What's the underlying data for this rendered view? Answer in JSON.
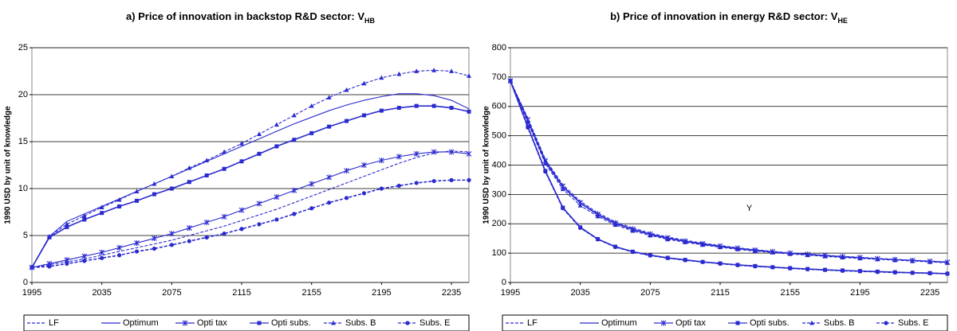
{
  "chart_data": [
    {
      "type": "line",
      "title": "a) Price of innovation in backstop R&D sector: V",
      "title_subscript": "HB",
      "y_label": "1990 USD by unit of knowledge",
      "x": [
        1995,
        2005,
        2015,
        2025,
        2035,
        2045,
        2055,
        2065,
        2075,
        2085,
        2095,
        2105,
        2115,
        2125,
        2135,
        2145,
        2155,
        2165,
        2175,
        2185,
        2195,
        2205,
        2215,
        2225,
        2235,
        2245
      ],
      "xlim": [
        1995,
        2245
      ],
      "xticks": [
        1995,
        2035,
        2075,
        2115,
        2155,
        2195,
        2235
      ],
      "ylim": [
        0,
        25
      ],
      "yticks": [
        0,
        5,
        10,
        15,
        20,
        25
      ],
      "grid": true,
      "series": [
        {
          "name": "LF",
          "color": "#2a2ad0",
          "dash": true,
          "marker": "none",
          "values": [
            1.6,
            1.9,
            2.2,
            2.5,
            2.9,
            3.3,
            3.7,
            4.1,
            4.5,
            5.0,
            5.5,
            6.0,
            6.6,
            7.2,
            7.8,
            8.5,
            9.2,
            9.9,
            10.6,
            11.3,
            12.0,
            12.7,
            13.3,
            13.8,
            14.0,
            13.9
          ]
        },
        {
          "name": "Optimum",
          "color": "#2a2ad0",
          "dash": false,
          "marker": "none",
          "values": [
            1.6,
            4.9,
            6.5,
            7.3,
            8.1,
            8.9,
            9.7,
            10.5,
            11.3,
            12.1,
            12.9,
            13.7,
            14.5,
            15.3,
            16.1,
            16.9,
            17.6,
            18.3,
            18.9,
            19.4,
            19.8,
            20.1,
            20.1,
            19.9,
            19.4,
            18.5
          ]
        },
        {
          "name": "Opti tax",
          "color": "#2a2ad0",
          "dash": false,
          "marker": "star",
          "values": [
            1.6,
            2.0,
            2.4,
            2.8,
            3.2,
            3.7,
            4.2,
            4.7,
            5.2,
            5.8,
            6.4,
            7.0,
            7.7,
            8.4,
            9.1,
            9.8,
            10.5,
            11.2,
            11.9,
            12.5,
            13.0,
            13.4,
            13.7,
            13.9,
            13.9,
            13.7
          ]
        },
        {
          "name": "Opti subs.",
          "color": "#2a2ad0",
          "dash": false,
          "marker": "square",
          "values": [
            1.6,
            4.8,
            5.9,
            6.7,
            7.4,
            8.1,
            8.7,
            9.4,
            10.0,
            10.7,
            11.4,
            12.1,
            12.9,
            13.7,
            14.5,
            15.2,
            15.9,
            16.6,
            17.2,
            17.8,
            18.3,
            18.6,
            18.8,
            18.8,
            18.6,
            18.2
          ]
        },
        {
          "name": "Subs. B",
          "color": "#2a2ad0",
          "dash": true,
          "marker": "triangle",
          "values": [
            1.6,
            4.9,
            6.2,
            7.1,
            8.0,
            8.8,
            9.7,
            10.5,
            11.3,
            12.2,
            13.0,
            13.9,
            14.8,
            15.8,
            16.8,
            17.8,
            18.8,
            19.7,
            20.5,
            21.2,
            21.8,
            22.2,
            22.5,
            22.6,
            22.5,
            22.0
          ]
        },
        {
          "name": "Subs. E",
          "color": "#2a2ad0",
          "dash": true,
          "marker": "circle",
          "values": [
            1.6,
            1.7,
            2.0,
            2.3,
            2.6,
            2.9,
            3.3,
            3.6,
            4.0,
            4.4,
            4.8,
            5.2,
            5.7,
            6.2,
            6.7,
            7.3,
            7.9,
            8.5,
            9.0,
            9.5,
            10.0,
            10.3,
            10.6,
            10.8,
            10.9,
            10.9
          ]
        }
      ]
    },
    {
      "type": "line",
      "title": "b) Price of innovation in energy R&D sector: V",
      "title_subscript": "HE",
      "y_label": "1990 USD by unit of knowledge",
      "annotation": "Y",
      "x": [
        1995,
        2005,
        2015,
        2025,
        2035,
        2045,
        2055,
        2065,
        2075,
        2085,
        2095,
        2105,
        2115,
        2125,
        2135,
        2145,
        2155,
        2165,
        2175,
        2185,
        2195,
        2205,
        2215,
        2225,
        2235,
        2245
      ],
      "xlim": [
        1995,
        2245
      ],
      "xticks": [
        1995,
        2035,
        2075,
        2115,
        2155,
        2195,
        2235
      ],
      "ylim": [
        0,
        800
      ],
      "yticks": [
        0,
        100,
        200,
        300,
        400,
        500,
        600,
        700,
        800
      ],
      "grid": true,
      "series": [
        {
          "name": "LF",
          "color": "#2a2ad0",
          "dash": true,
          "marker": "none",
          "values": [
            687,
            560,
            420,
            333,
            277,
            237,
            207,
            186,
            168,
            155,
            144,
            134,
            126,
            118,
            112,
            106,
            101,
            97,
            93,
            89,
            86,
            82,
            79,
            76,
            73,
            70
          ]
        },
        {
          "name": "Optimum",
          "color": "#2a2ad0",
          "dash": false,
          "marker": "none",
          "values": [
            687,
            550,
            410,
            325,
            270,
            230,
            200,
            180,
            163,
            150,
            140,
            130,
            122,
            115,
            109,
            104,
            99,
            95,
            91,
            87,
            84,
            81,
            78,
            75,
            72,
            69
          ]
        },
        {
          "name": "Opti tax",
          "color": "#2a2ad0",
          "dash": false,
          "marker": "star",
          "values": [
            687,
            555,
            415,
            328,
            272,
            233,
            203,
            182,
            165,
            152,
            141,
            132,
            124,
            117,
            110,
            105,
            100,
            96,
            92,
            88,
            85,
            81,
            78,
            75,
            72,
            69
          ]
        },
        {
          "name": "Opti subs.",
          "color": "#2a2ad0",
          "dash": false,
          "marker": "square",
          "values": [
            687,
            530,
            380,
            255,
            188,
            148,
            122,
            105,
            93,
            84,
            77,
            70,
            65,
            60,
            56,
            52,
            49,
            46,
            43,
            41,
            39,
            37,
            35,
            33,
            32,
            30
          ]
        },
        {
          "name": "Subs. B",
          "color": "#2a2ad0",
          "dash": true,
          "marker": "triangle",
          "values": [
            687,
            545,
            405,
            318,
            262,
            225,
            196,
            176,
            160,
            147,
            137,
            128,
            120,
            113,
            107,
            102,
            97,
            93,
            89,
            85,
            82,
            79,
            76,
            73,
            70,
            67
          ]
        },
        {
          "name": "Subs. E",
          "color": "#2a2ad0",
          "dash": true,
          "marker": "circle",
          "values": [
            687,
            528,
            378,
            253,
            186,
            147,
            121,
            104,
            92,
            83,
            76,
            70,
            64,
            59,
            55,
            52,
            48,
            45,
            43,
            40,
            38,
            36,
            34,
            33,
            31,
            30
          ]
        }
      ]
    }
  ]
}
